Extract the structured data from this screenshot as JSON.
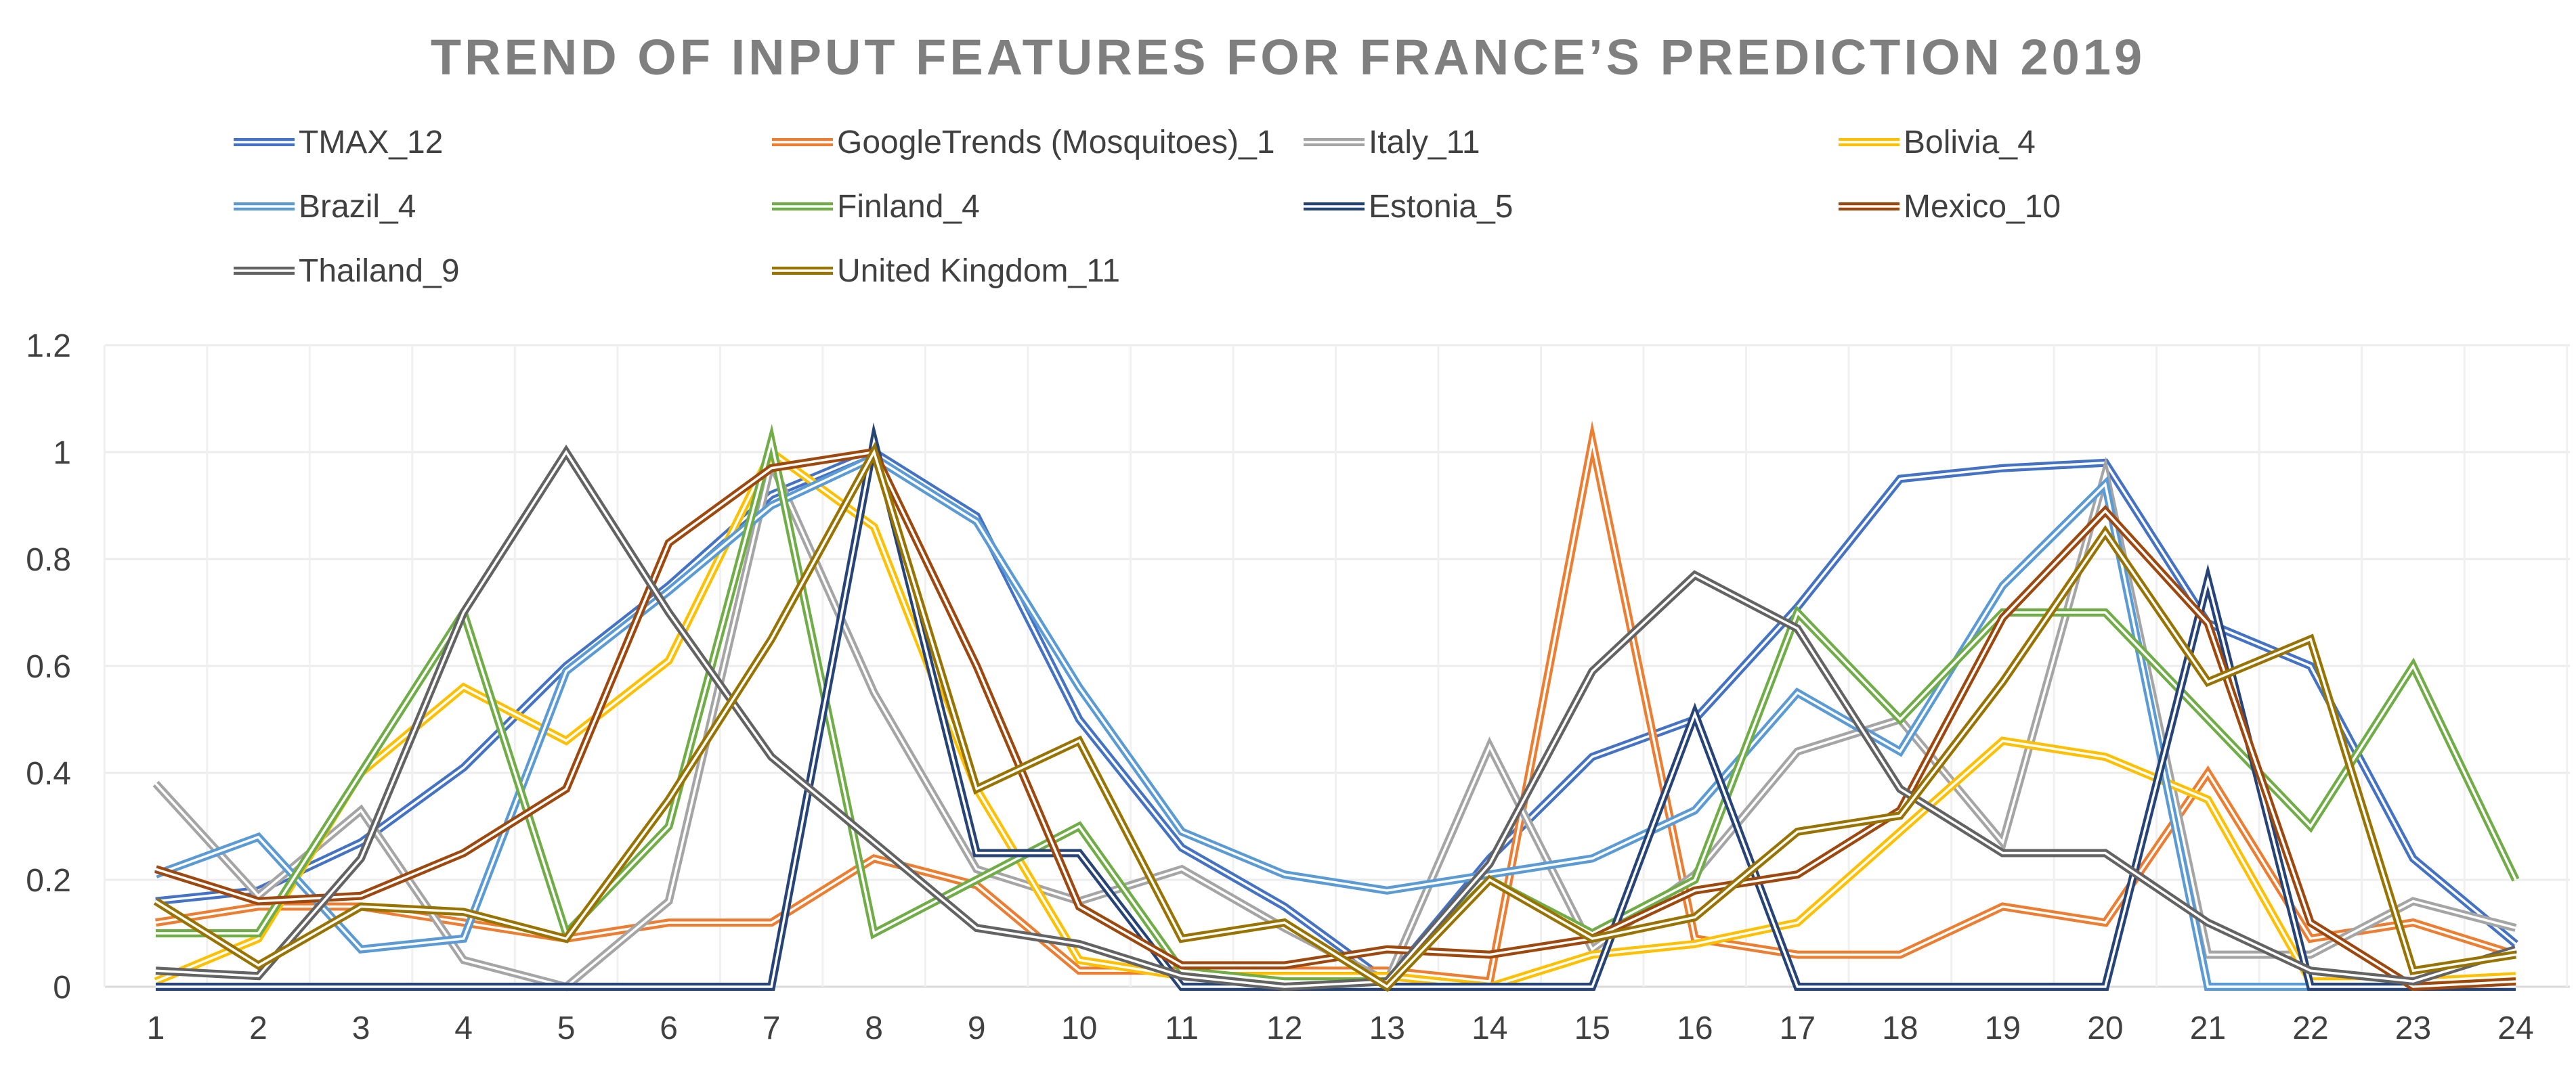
{
  "chart_data": {
    "type": "line",
    "title": "TREND OF INPUT FEATURES FOR FRANCE’S PREDICTION 2019",
    "xlabel": "",
    "ylabel": "",
    "ylim": [
      0,
      1.2
    ],
    "yticks": [
      "0",
      "0.2",
      "0.4",
      "0.6",
      "0.8",
      "1",
      "1.2"
    ],
    "categories": [
      "1",
      "2",
      "3",
      "4",
      "5",
      "6",
      "7",
      "8",
      "9",
      "10",
      "11",
      "12",
      "13",
      "14",
      "15",
      "16",
      "17",
      "18",
      "19",
      "20",
      "21",
      "22",
      "23",
      "24"
    ],
    "grid": true,
    "legend_position": "top",
    "series": [
      {
        "name": "TMAX_12",
        "color": "#4472c4",
        "values": [
          0.16,
          0.18,
          0.27,
          0.41,
          0.6,
          0.75,
          0.92,
          1.0,
          0.88,
          0.5,
          0.26,
          0.15,
          0.01,
          0.24,
          0.43,
          0.5,
          0.71,
          0.95,
          0.97,
          0.98,
          0.68,
          0.6,
          0.24,
          0.08
        ]
      },
      {
        "name": "GoogleTrends (Mosquitoes)_1",
        "color": "#ed7d31",
        "values": [
          0.12,
          0.15,
          0.15,
          0.12,
          0.09,
          0.12,
          0.12,
          0.24,
          0.19,
          0.03,
          0.03,
          0.03,
          0.03,
          0.01,
          1.02,
          0.09,
          0.06,
          0.06,
          0.15,
          0.12,
          0.4,
          0.09,
          0.12,
          0.06
        ]
      },
      {
        "name": "Italy_11",
        "color": "#a5a5a5",
        "values": [
          0.38,
          0.17,
          0.33,
          0.05,
          0.0,
          0.16,
          0.98,
          0.55,
          0.22,
          0.16,
          0.22,
          0.11,
          0.01,
          0.45,
          0.07,
          0.21,
          0.44,
          0.5,
          0.27,
          0.96,
          0.06,
          0.06,
          0.16,
          0.11
        ]
      },
      {
        "name": "Bolivia_4",
        "color": "#ffc000",
        "values": [
          0.01,
          0.09,
          0.4,
          0.56,
          0.46,
          0.61,
          1.0,
          0.86,
          0.37,
          0.05,
          0.02,
          0.02,
          0.02,
          0.0,
          0.06,
          0.08,
          0.12,
          0.29,
          0.46,
          0.43,
          0.35,
          0.01,
          0.01,
          0.02
        ]
      },
      {
        "name": "Brazil_4",
        "color": "#5b9bd5",
        "values": [
          0.21,
          0.28,
          0.07,
          0.09,
          0.59,
          0.74,
          0.9,
          0.99,
          0.87,
          0.56,
          0.29,
          0.21,
          0.18,
          0.21,
          0.24,
          0.33,
          0.55,
          0.44,
          0.75,
          0.94,
          0.0,
          0.0,
          0.0,
          0.0
        ]
      },
      {
        "name": "Finland_4",
        "color": "#70ad47",
        "values": [
          0.1,
          0.1,
          0.4,
          0.7,
          0.1,
          0.3,
          1.02,
          0.1,
          0.2,
          0.3,
          0.03,
          0.01,
          0.01,
          0.2,
          0.1,
          0.2,
          0.7,
          0.5,
          0.7,
          0.7,
          0.5,
          0.3,
          0.6,
          0.2
        ]
      },
      {
        "name": "Estonia_5",
        "color": "#264478",
        "values": [
          0.0,
          0.0,
          0.0,
          0.0,
          0.0,
          0.0,
          0.0,
          1.02,
          0.25,
          0.25,
          0.0,
          0.0,
          0.0,
          0.0,
          0.0,
          0.51,
          0.0,
          0.0,
          0.0,
          0.0,
          0.76,
          0.0,
          0.0,
          0.0
        ]
      },
      {
        "name": "Mexico_10",
        "color": "#9e480e",
        "values": [
          0.22,
          0.16,
          0.17,
          0.25,
          0.37,
          0.83,
          0.97,
          1.0,
          0.6,
          0.15,
          0.04,
          0.04,
          0.07,
          0.06,
          0.09,
          0.18,
          0.21,
          0.33,
          0.69,
          0.89,
          0.68,
          0.12,
          0.0,
          0.01
        ]
      },
      {
        "name": "Thailand_9",
        "color": "#636363",
        "values": [
          0.03,
          0.02,
          0.24,
          0.7,
          1.0,
          0.7,
          0.43,
          0.27,
          0.11,
          0.08,
          0.02,
          0.0,
          0.01,
          0.23,
          0.59,
          0.77,
          0.67,
          0.37,
          0.25,
          0.25,
          0.12,
          0.03,
          0.01,
          0.07
        ]
      },
      {
        "name": "United Kingdom_11",
        "color": "#997300",
        "values": [
          0.16,
          0.04,
          0.15,
          0.14,
          0.09,
          0.35,
          0.65,
          1.0,
          0.37,
          0.46,
          0.09,
          0.12,
          0.0,
          0.2,
          0.09,
          0.13,
          0.29,
          0.32,
          0.57,
          0.85,
          0.57,
          0.65,
          0.03,
          0.06
        ]
      }
    ]
  }
}
